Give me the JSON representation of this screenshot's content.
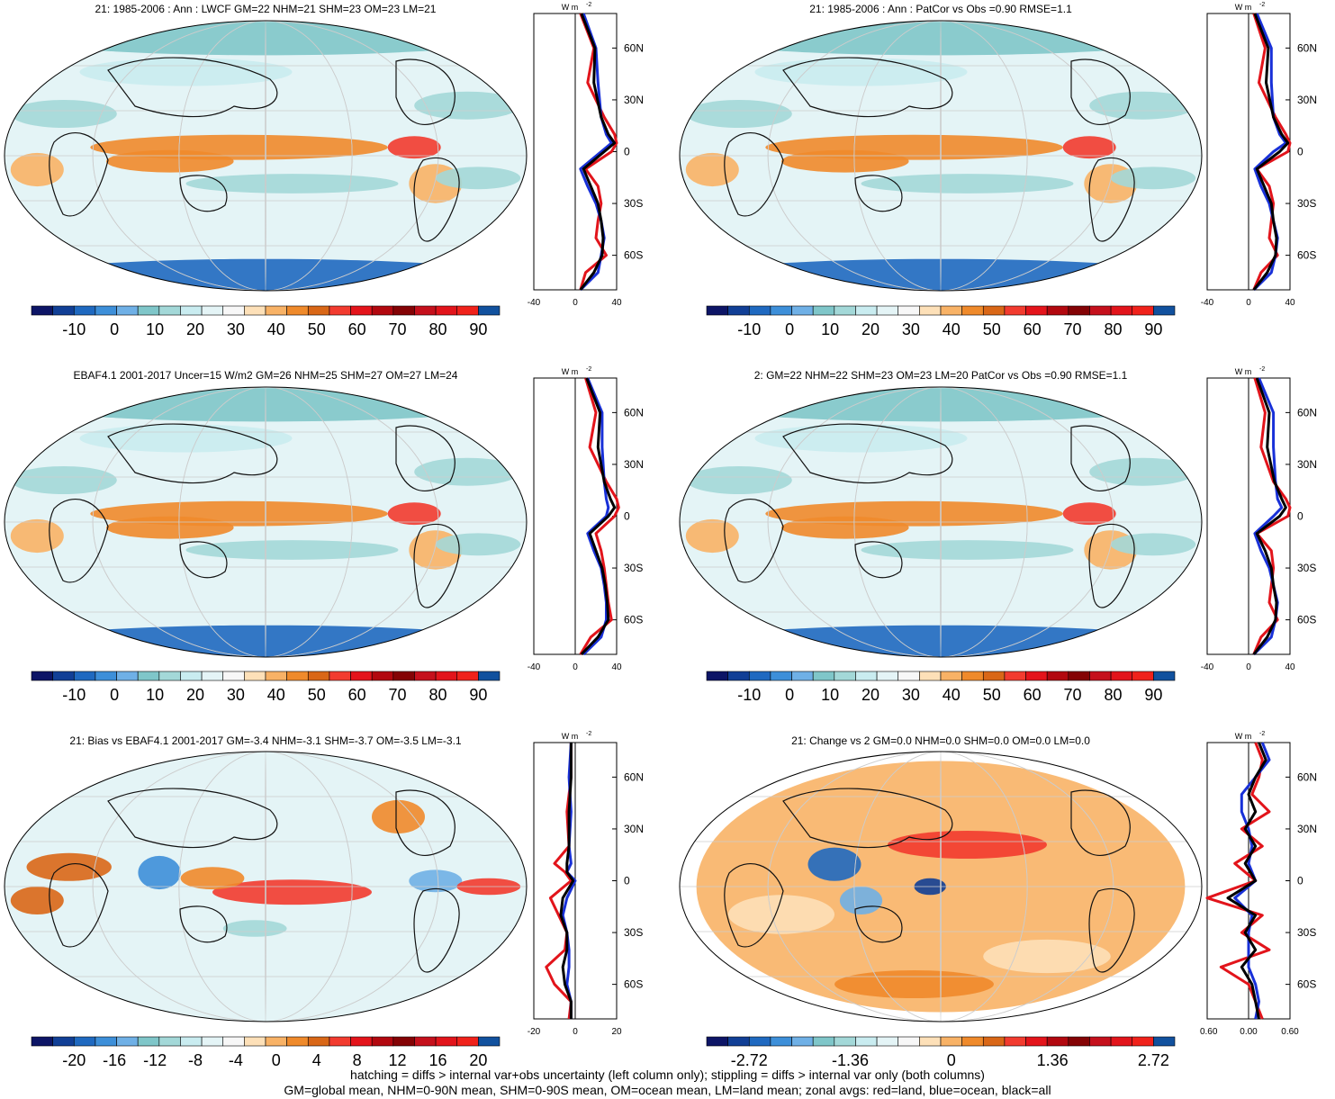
{
  "colors": {
    "palette": [
      "#0d1566",
      "#113f96",
      "#1f69c0",
      "#3d8fd9",
      "#6fb0e6",
      "#7fc6c9",
      "#a3d8d8",
      "#c9ecf0",
      "#e4f4f6",
      "#f7f7f7",
      "#fde0b8",
      "#f8b266",
      "#ef8a2b",
      "#d96717",
      "#f23b2f",
      "#e4141b",
      "#b2080f",
      "#840305",
      "#c5101c",
      "#e2141b",
      "#f0221b",
      "#11519e"
    ],
    "land": "#e2141b",
    "ocean": "#1830d8",
    "all": "#000000",
    "coast": "#111111"
  },
  "panels": [
    {
      "id": "r1l",
      "title": "21: 1985-2006 : Ann : LWCF GM=22 NHM=21 SHM=23 OM=23 LM=21",
      "cbar_labels": [
        "-10",
        "0",
        "10",
        "20",
        "30",
        "40",
        "50",
        "60",
        "70",
        "80",
        "90"
      ],
      "zonal_xticks": [
        "-40",
        "0",
        "40"
      ],
      "zonal_yticks": [
        "60N",
        "30N",
        "0",
        "30S",
        "60S"
      ],
      "unit": "W m",
      "unit_exp": "-2"
    },
    {
      "id": "r1r",
      "title": "21: 1985-2006 : Ann : PatCor vs Obs =0.90 RMSE=1.1",
      "cbar_labels": [
        "-10",
        "0",
        "10",
        "20",
        "30",
        "40",
        "50",
        "60",
        "70",
        "80",
        "90"
      ],
      "zonal_xticks": [
        "-40",
        "0",
        "40"
      ],
      "zonal_yticks": [
        "60N",
        "30N",
        "0",
        "30S",
        "60S"
      ],
      "unit": "W m",
      "unit_exp": "-2"
    },
    {
      "id": "r2l",
      "title": "EBAF4.1 2001-2017 Uncer=15 W/m2 GM=26 NHM=25 SHM=27 OM=27 LM=24",
      "cbar_labels": [
        "-10",
        "0",
        "10",
        "20",
        "30",
        "40",
        "50",
        "60",
        "70",
        "80",
        "90"
      ],
      "zonal_xticks": [
        "-40",
        "0",
        "40"
      ],
      "zonal_yticks": [
        "60N",
        "30N",
        "0",
        "30S",
        "60S"
      ],
      "unit": "W m",
      "unit_exp": "-2"
    },
    {
      "id": "r2r",
      "title": "2: GM=22 NHM=22 SHM=23 OM=23 LM=20 PatCor vs Obs =0.90 RMSE=1.1",
      "cbar_labels": [
        "-10",
        "0",
        "10",
        "20",
        "30",
        "40",
        "50",
        "60",
        "70",
        "80",
        "90"
      ],
      "zonal_xticks": [
        "-40",
        "0",
        "40"
      ],
      "zonal_yticks": [
        "60N",
        "30N",
        "0",
        "30S",
        "60S"
      ],
      "unit": "W m",
      "unit_exp": "-2"
    },
    {
      "id": "r3l",
      "title": "21: Bias vs EBAF4.1 2001-2017 GM=-3.4 NHM=-3.1 SHM=-3.7 OM=-3.5 LM=-3.1",
      "cbar_labels": [
        "-20",
        "-16",
        "-12",
        "-8",
        "-4",
        "0",
        "4",
        "8",
        "12",
        "16",
        "20"
      ],
      "zonal_xticks": [
        "-20",
        "0",
        "20"
      ],
      "zonal_yticks": [
        "60N",
        "30N",
        "0",
        "30S",
        "60S"
      ],
      "unit": "W m",
      "unit_exp": "-2"
    },
    {
      "id": "r3r",
      "title": "21: Change vs 2 GM=0.0 NHM=0.0 SHM=0.0 OM=0.0 LM=0.0",
      "cbar_labels": [
        "-2.72",
        "-1.36",
        "0",
        "1.36",
        "2.72"
      ],
      "zonal_xticks": [
        "-0.60",
        "0.00",
        "0.60"
      ],
      "zonal_yticks": [
        "60N",
        "30N",
        "0",
        "30S",
        "60S"
      ],
      "unit": "W m",
      "unit_exp": "-2"
    }
  ],
  "footer": {
    "line1": "hatching = diffs > internal var+obs uncertainty (left column only); stippling = diffs > internal var only (both columns)",
    "line2": "GM=global mean, NHM=0-90N mean, SHM=0-90S mean, OM=ocean mean, LM=land mean; zonal avgs: red=land, blue=ocean, black=all"
  },
  "chart_data": [
    {
      "type": "heatmap",
      "title": "21: 1985-2006 : Ann : LWCF GM=22 NHM=21 SHM=23 OM=23 LM=21",
      "colorbar_ticks": [
        -10,
        0,
        10,
        20,
        30,
        40,
        50,
        60,
        70,
        80,
        90
      ],
      "zonal_mean": {
        "xlim": [
          -40,
          40
        ],
        "lat": [
          80,
          60,
          40,
          20,
          10,
          5,
          0,
          -10,
          -20,
          -30,
          -40,
          -50,
          -60,
          -70,
          -80
        ],
        "land": [
          5,
          18,
          12,
          28,
          38,
          40,
          35,
          10,
          22,
          25,
          22,
          20,
          30,
          10,
          5
        ],
        "ocean": [
          8,
          20,
          22,
          25,
          30,
          35,
          25,
          5,
          12,
          20,
          25,
          28,
          25,
          22,
          5
        ],
        "all": [
          6,
          19,
          18,
          25,
          32,
          38,
          28,
          8,
          15,
          22,
          25,
          27,
          26,
          18,
          5
        ]
      }
    },
    {
      "type": "heatmap",
      "title": "21: 1985-2006 : Ann : PatCor vs Obs =0.90 RMSE=1.1",
      "colorbar_ticks": [
        -10,
        0,
        10,
        20,
        30,
        40,
        50,
        60,
        70,
        80,
        90
      ],
      "zonal_mean": {
        "xlim": [
          -40,
          40
        ],
        "lat": [
          80,
          60,
          40,
          20,
          10,
          5,
          0,
          -10,
          -20,
          -30,
          -40,
          -50,
          -60,
          -70,
          -80
        ],
        "land": [
          5,
          16,
          10,
          26,
          36,
          40,
          38,
          8,
          20,
          24,
          22,
          20,
          28,
          12,
          5
        ],
        "ocean": [
          8,
          22,
          22,
          24,
          30,
          36,
          24,
          6,
          12,
          20,
          24,
          28,
          26,
          22,
          5
        ],
        "all": [
          6,
          19,
          17,
          24,
          32,
          38,
          30,
          8,
          15,
          22,
          24,
          27,
          26,
          18,
          5
        ]
      }
    },
    {
      "type": "heatmap",
      "title": "EBAF4.1 2001-2017 Uncer=15 W/m2 GM=26 NHM=25 SHM=27 OM=27 LM=24",
      "colorbar_ticks": [
        -10,
        0,
        10,
        20,
        30,
        40,
        50,
        60,
        70,
        80,
        90
      ],
      "zonal_mean": {
        "xlim": [
          -40,
          40
        ],
        "lat": [
          80,
          60,
          40,
          20,
          10,
          5,
          0,
          -10,
          -20,
          -30,
          -40,
          -50,
          -60,
          -70,
          -80
        ],
        "land": [
          10,
          20,
          14,
          30,
          40,
          42,
          38,
          20,
          25,
          28,
          30,
          32,
          35,
          15,
          5
        ],
        "ocean": [
          12,
          26,
          26,
          28,
          30,
          32,
          30,
          12,
          18,
          25,
          28,
          30,
          30,
          25,
          8
        ],
        "all": [
          11,
          24,
          22,
          28,
          34,
          38,
          32,
          14,
          20,
          26,
          29,
          31,
          32,
          22,
          6
        ]
      }
    },
    {
      "type": "heatmap",
      "title": "2: GM=22 NHM=22 SHM=23 OM=23 LM=20 PatCor vs Obs =0.90 RMSE=1.1",
      "colorbar_ticks": [
        -10,
        0,
        10,
        20,
        30,
        40,
        50,
        60,
        70,
        80,
        90
      ],
      "zonal_mean": {
        "xlim": [
          -40,
          40
        ],
        "lat": [
          80,
          60,
          40,
          20,
          10,
          5,
          0,
          -10,
          -20,
          -30,
          -40,
          -50,
          -60,
          -70,
          -80
        ],
        "land": [
          6,
          16,
          12,
          24,
          36,
          40,
          38,
          8,
          22,
          24,
          22,
          20,
          28,
          12,
          5
        ],
        "ocean": [
          10,
          24,
          24,
          26,
          28,
          32,
          24,
          6,
          12,
          20,
          24,
          28,
          26,
          22,
          5
        ],
        "all": [
          8,
          20,
          18,
          25,
          32,
          36,
          30,
          8,
          16,
          22,
          24,
          27,
          26,
          18,
          5
        ]
      }
    },
    {
      "type": "heatmap",
      "title": "21: Bias vs EBAF4.1 2001-2017 GM=-3.4 NHM=-3.1 SHM=-3.7 OM=-3.5 LM=-3.1",
      "colorbar_ticks": [
        -20,
        -16,
        -12,
        -8,
        -4,
        0,
        4,
        8,
        12,
        16,
        20
      ],
      "zonal_mean": {
        "xlim": [
          -20,
          20
        ],
        "lat": [
          80,
          60,
          40,
          20,
          10,
          5,
          0,
          -10,
          -20,
          -30,
          -40,
          -50,
          -60,
          -70,
          -80
        ],
        "land": [
          -2,
          -2,
          -4,
          -3,
          -10,
          -5,
          -2,
          -12,
          -8,
          -4,
          -5,
          -14,
          -10,
          -2,
          -3
        ],
        "ocean": [
          -2,
          -3,
          -2,
          -3,
          -2,
          -4,
          0,
          -4,
          -6,
          -4,
          -3,
          -3,
          -4,
          -2,
          -2
        ],
        "all": [
          -2,
          -2,
          -3,
          -3,
          -4,
          -4,
          -1,
          -6,
          -7,
          -4,
          -4,
          -6,
          -5,
          -2,
          -2
        ]
      }
    },
    {
      "type": "heatmap",
      "title": "21: Change vs 2 GM=0.0 NHM=0.0 SHM=0.0 OM=0.0 LM=0.0",
      "colorbar_ticks": [
        -2.72,
        -1.36,
        0,
        1.36,
        2.72
      ],
      "zonal_mean": {
        "xlim": [
          -0.6,
          0.6
        ],
        "lat": [
          80,
          70,
          60,
          50,
          40,
          30,
          20,
          10,
          0,
          -10,
          -20,
          -30,
          -40,
          -50,
          -60,
          -70,
          -80
        ],
        "land": [
          0.1,
          0.2,
          0.15,
          0.05,
          0.3,
          -0.1,
          0.2,
          -0.2,
          0.1,
          -0.6,
          0.2,
          -0.1,
          0.3,
          -0.4,
          0.0,
          0.1,
          0.2
        ],
        "ocean": [
          0.2,
          0.3,
          0.1,
          -0.1,
          -0.1,
          0.0,
          0.05,
          0.0,
          0.1,
          -0.2,
          0.05,
          0.0,
          0.0,
          0.0,
          0.1,
          0.15,
          0.1
        ],
        "all": [
          0.15,
          0.25,
          0.1,
          0.0,
          0.1,
          -0.05,
          0.1,
          -0.05,
          0.1,
          -0.3,
          0.1,
          -0.05,
          0.1,
          -0.1,
          0.05,
          0.1,
          0.15
        ]
      }
    }
  ]
}
